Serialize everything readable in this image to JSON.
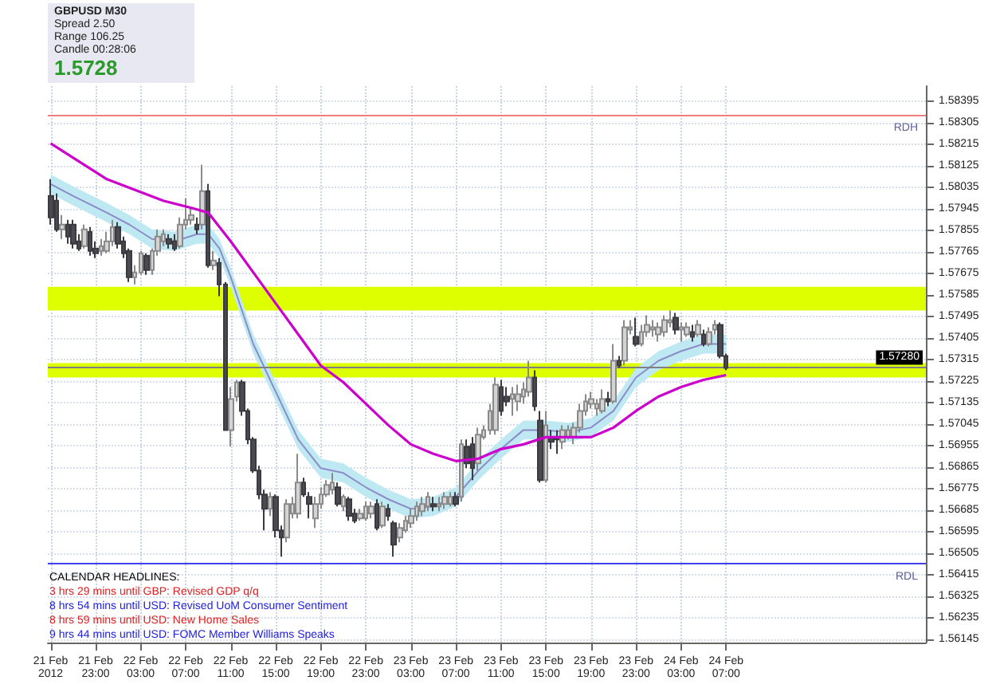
{
  "chart_data": {
    "type": "candlestick",
    "title": "GBPUSD M30",
    "annotations": [
      "Spread 2.50",
      "Range 106.25",
      "Candle 00:28:06",
      "1.5728",
      "CALENDAR HEADLINES:",
      "3 hrs 29 mins until GBP: Revised GDP q/q",
      "8 hrs 54 mins until USD: Revised UoM Consumer Sentiment",
      "8 hrs 59 mins until USD: New Home Sales",
      "9 hrs 44 mins until USD: FOMC Member Williams Speaks"
    ],
    "x": [
      "2012-02-21T19:00",
      "2012-02-21T19:30",
      "2012-02-21T20:00",
      "2012-02-21T20:30",
      "2012-02-21T21:00",
      "2012-02-21T21:30",
      "2012-02-21T22:00",
      "2012-02-21T22:30",
      "2012-02-21T23:00",
      "2012-02-21T23:30",
      "2012-02-22T00:00",
      "2012-02-22T00:30",
      "2012-02-22T01:00",
      "2012-02-22T01:30",
      "2012-02-22T02:00",
      "2012-02-22T02:30",
      "2012-02-22T03:00",
      "2012-02-22T03:30",
      "2012-02-22T04:00",
      "2012-02-22T04:30",
      "2012-02-22T05:00",
      "2012-02-22T05:30",
      "2012-02-22T06:00",
      "2012-02-22T06:30",
      "2012-02-22T07:00",
      "2012-02-22T07:30",
      "2012-02-22T08:00",
      "2012-02-22T08:30",
      "2012-02-22T09:00",
      "2012-02-22T09:30",
      "2012-02-22T10:00",
      "2012-02-22T10:30",
      "2012-02-22T11:00",
      "2012-02-22T11:30",
      "2012-02-22T12:00",
      "2012-02-22T12:30",
      "2012-02-22T13:00",
      "2012-02-22T13:30",
      "2012-02-22T14:00",
      "2012-02-22T14:30",
      "2012-02-22T15:00",
      "2012-02-22T15:30",
      "2012-02-22T16:00",
      "2012-02-22T16:30",
      "2012-02-22T17:00",
      "2012-02-22T17:30",
      "2012-02-22T18:00",
      "2012-02-22T18:30",
      "2012-02-22T19:00",
      "2012-02-22T19:30",
      "2012-02-22T20:00",
      "2012-02-22T20:30",
      "2012-02-22T21:00",
      "2012-02-22T21:30",
      "2012-02-22T22:00",
      "2012-02-22T22:30",
      "2012-02-22T23:00",
      "2012-02-22T23:30",
      "2012-02-23T00:00",
      "2012-02-23T00:30",
      "2012-02-23T01:00",
      "2012-02-23T01:30",
      "2012-02-23T02:00",
      "2012-02-23T02:30",
      "2012-02-23T03:00",
      "2012-02-23T03:30",
      "2012-02-23T04:00",
      "2012-02-23T04:30",
      "2012-02-23T05:00",
      "2012-02-23T05:30",
      "2012-02-23T06:00",
      "2012-02-23T06:30",
      "2012-02-23T07:00",
      "2012-02-23T07:30",
      "2012-02-23T08:00",
      "2012-02-23T08:30",
      "2012-02-23T09:00",
      "2012-02-23T09:30",
      "2012-02-23T10:00",
      "2012-02-23T10:30",
      "2012-02-23T11:00",
      "2012-02-23T11:30",
      "2012-02-23T12:00",
      "2012-02-23T12:30",
      "2012-02-23T13:00",
      "2012-02-23T13:30",
      "2012-02-23T14:00",
      "2012-02-23T14:30",
      "2012-02-23T15:00",
      "2012-02-23T15:30",
      "2012-02-23T16:00",
      "2012-02-23T16:30",
      "2012-02-23T17:00",
      "2012-02-23T17:30",
      "2012-02-23T18:00",
      "2012-02-23T18:30",
      "2012-02-23T19:00",
      "2012-02-23T19:30",
      "2012-02-23T20:00",
      "2012-02-23T20:30",
      "2012-02-23T21:00",
      "2012-02-23T21:30",
      "2012-02-23T22:00",
      "2012-02-23T22:30",
      "2012-02-23T23:00",
      "2012-02-23T23:30",
      "2012-02-24T00:00",
      "2012-02-24T00:30",
      "2012-02-24T01:00",
      "2012-02-24T01:30",
      "2012-02-24T02:00",
      "2012-02-24T02:30",
      "2012-02-24T03:00",
      "2012-02-24T03:30",
      "2012-02-24T04:00",
      "2012-02-24T04:30",
      "2012-02-24T05:00",
      "2012-02-24T05:30",
      "2012-02-24T06:00",
      "2012-02-24T06:30",
      "2012-02-24T07:00"
    ],
    "ohlc": [
      [
        1.58,
        1.5807,
        1.5788,
        1.5791
      ],
      [
        1.5798,
        1.5801,
        1.5785,
        1.5786
      ],
      [
        1.5786,
        1.5792,
        1.5782,
        1.5788
      ],
      [
        1.5788,
        1.579,
        1.578,
        1.5783
      ],
      [
        1.5788,
        1.579,
        1.5778,
        1.578
      ],
      [
        1.5781,
        1.5784,
        1.5777,
        1.5778
      ],
      [
        1.5779,
        1.5788,
        1.5778,
        1.5786
      ],
      [
        1.5785,
        1.5787,
        1.5775,
        1.5777
      ],
      [
        1.5778,
        1.5781,
        1.5774,
        1.5776
      ],
      [
        1.5777,
        1.5782,
        1.5775,
        1.5779
      ],
      [
        1.5777,
        1.5785,
        1.5776,
        1.5781
      ],
      [
        1.5781,
        1.579,
        1.5779,
        1.5787
      ],
      [
        1.5787,
        1.5789,
        1.5778,
        1.578
      ],
      [
        1.5781,
        1.5783,
        1.5774,
        1.5776
      ],
      [
        1.5777,
        1.5778,
        1.5764,
        1.5766
      ],
      [
        1.5766,
        1.5771,
        1.5763,
        1.5768
      ],
      [
        1.5768,
        1.5777,
        1.5767,
        1.5776
      ],
      [
        1.5775,
        1.5776,
        1.5767,
        1.5769
      ],
      [
        1.5769,
        1.5778,
        1.5767,
        1.5777
      ],
      [
        1.5777,
        1.5786,
        1.5775,
        1.5783
      ],
      [
        1.5781,
        1.5786,
        1.5779,
        1.5784
      ],
      [
        1.5782,
        1.5784,
        1.5778,
        1.578
      ],
      [
        1.5781,
        1.5784,
        1.5777,
        1.5778
      ],
      [
        1.5779,
        1.5791,
        1.5778,
        1.5788
      ],
      [
        1.5788,
        1.5799,
        1.5786,
        1.579
      ],
      [
        1.579,
        1.5795,
        1.5788,
        1.5792
      ],
      [
        1.5788,
        1.5791,
        1.5784,
        1.5786
      ],
      [
        1.5788,
        1.5813,
        1.5786,
        1.5802
      ],
      [
        1.5802,
        1.5805,
        1.577,
        1.5771
      ],
      [
        1.5771,
        1.5777,
        1.5769,
        1.5773
      ],
      [
        1.5772,
        1.5774,
        1.5758,
        1.5763
      ],
      [
        1.5763,
        1.5764,
        1.5702,
        1.5702
      ],
      [
        1.5702,
        1.572,
        1.5695,
        1.5715
      ],
      [
        1.5716,
        1.5723,
        1.5714,
        1.5722
      ],
      [
        1.5722,
        1.5723,
        1.5708,
        1.571
      ],
      [
        1.571,
        1.5711,
        1.5696,
        1.5698
      ],
      [
        1.5698,
        1.5699,
        1.5684,
        1.5685
      ],
      [
        1.5685,
        1.5687,
        1.5673,
        1.5675
      ],
      [
        1.5675,
        1.5677,
        1.566,
        1.5669
      ],
      [
        1.5669,
        1.5676,
        1.5666,
        1.5674
      ],
      [
        1.5674,
        1.5675,
        1.5657,
        1.566
      ],
      [
        1.566,
        1.5662,
        1.5649,
        1.5657
      ],
      [
        1.5657,
        1.5673,
        1.5655,
        1.5671
      ],
      [
        1.5667,
        1.5674,
        1.5665,
        1.5671
      ],
      [
        1.5667,
        1.5692,
        1.5665,
        1.568
      ],
      [
        1.568,
        1.5682,
        1.5674,
        1.5675
      ],
      [
        1.5674,
        1.5676,
        1.5665,
        1.5671
      ],
      [
        1.5665,
        1.5674,
        1.5661,
        1.5671
      ],
      [
        1.5671,
        1.5678,
        1.5669,
        1.5675
      ],
      [
        1.5675,
        1.5681,
        1.5674,
        1.5679
      ],
      [
        1.5677,
        1.5684,
        1.5675,
        1.568
      ],
      [
        1.5678,
        1.568,
        1.567,
        1.5671
      ],
      [
        1.567,
        1.5675,
        1.5668,
        1.5674
      ],
      [
        1.5673,
        1.5674,
        1.5664,
        1.5666
      ],
      [
        1.5667,
        1.5669,
        1.5663,
        1.5664
      ],
      [
        1.5665,
        1.5669,
        1.5664,
        1.5667
      ],
      [
        1.5665,
        1.5672,
        1.5664,
        1.567
      ],
      [
        1.5667,
        1.5672,
        1.5665,
        1.567
      ],
      [
        1.5671,
        1.5673,
        1.566,
        1.5661
      ],
      [
        1.5662,
        1.5672,
        1.5661,
        1.567
      ],
      [
        1.5669,
        1.5671,
        1.5664,
        1.5666
      ],
      [
        1.5663,
        1.5664,
        1.5649,
        1.5654
      ],
      [
        1.5657,
        1.5663,
        1.5655,
        1.5661
      ],
      [
        1.566,
        1.5666,
        1.5659,
        1.5664
      ],
      [
        1.5663,
        1.5669,
        1.5661,
        1.5666
      ],
      [
        1.5666,
        1.5672,
        1.5664,
        1.567
      ],
      [
        1.5668,
        1.5674,
        1.5666,
        1.5671
      ],
      [
        1.567,
        1.5676,
        1.5668,
        1.5674
      ],
      [
        1.5671,
        1.5674,
        1.5668,
        1.567
      ],
      [
        1.567,
        1.5674,
        1.5668,
        1.5671
      ],
      [
        1.5671,
        1.5676,
        1.5669,
        1.5674
      ],
      [
        1.5671,
        1.5676,
        1.567,
        1.5674
      ],
      [
        1.5674,
        1.5676,
        1.567,
        1.5671
      ],
      [
        1.5674,
        1.5698,
        1.5672,
        1.5696
      ],
      [
        1.5695,
        1.5698,
        1.5686,
        1.5688
      ],
      [
        1.5696,
        1.5699,
        1.5681,
        1.5686
      ],
      [
        1.5688,
        1.5703,
        1.5685,
        1.57
      ],
      [
        1.5699,
        1.5704,
        1.5698,
        1.5702
      ],
      [
        1.5702,
        1.5713,
        1.57,
        1.571
      ],
      [
        1.5702,
        1.5724,
        1.57,
        1.5721
      ],
      [
        1.572,
        1.5723,
        1.5708,
        1.571
      ],
      [
        1.5716,
        1.572,
        1.5712,
        1.5714
      ],
      [
        1.5715,
        1.572,
        1.5708,
        1.5717
      ],
      [
        1.5714,
        1.5721,
        1.571,
        1.5717
      ],
      [
        1.5716,
        1.5722,
        1.5713,
        1.5719
      ],
      [
        1.5718,
        1.5731,
        1.5716,
        1.5724
      ],
      [
        1.5724,
        1.5727,
        1.571,
        1.5712
      ],
      [
        1.5706,
        1.571,
        1.568,
        1.5681
      ],
      [
        1.5681,
        1.571,
        1.568,
        1.5704
      ],
      [
        1.5699,
        1.5702,
        1.5694,
        1.5697
      ],
      [
        1.5699,
        1.5702,
        1.5692,
        1.5698
      ],
      [
        1.5697,
        1.5704,
        1.5694,
        1.5702
      ],
      [
        1.5699,
        1.5704,
        1.5698,
        1.5702
      ],
      [
        1.5699,
        1.5705,
        1.5696,
        1.5703
      ],
      [
        1.5703,
        1.5713,
        1.5701,
        1.571
      ],
      [
        1.571,
        1.5717,
        1.5708,
        1.5714
      ],
      [
        1.5713,
        1.5718,
        1.5711,
        1.5715
      ],
      [
        1.5711,
        1.5715,
        1.5708,
        1.5713
      ],
      [
        1.571,
        1.5719,
        1.5709,
        1.5715
      ],
      [
        1.5715,
        1.5718,
        1.5712,
        1.5714
      ],
      [
        1.5714,
        1.5738,
        1.5713,
        1.5731
      ],
      [
        1.5731,
        1.5733,
        1.5728,
        1.5729
      ],
      [
        1.5731,
        1.5748,
        1.5729,
        1.5745
      ],
      [
        1.5744,
        1.5748,
        1.5742,
        1.5745
      ],
      [
        1.5741,
        1.5749,
        1.5737,
        1.5738
      ],
      [
        1.5738,
        1.5746,
        1.5737,
        1.5743
      ],
      [
        1.5743,
        1.575,
        1.5741,
        1.5746
      ],
      [
        1.5744,
        1.5748,
        1.5741,
        1.5745
      ],
      [
        1.5742,
        1.5747,
        1.5739,
        1.5745
      ],
      [
        1.5743,
        1.575,
        1.5741,
        1.5748
      ],
      [
        1.5747,
        1.5752,
        1.5745,
        1.5748
      ],
      [
        1.5749,
        1.5751,
        1.5742,
        1.5744
      ],
      [
        1.5744,
        1.5747,
        1.5739,
        1.5745
      ],
      [
        1.5742,
        1.5747,
        1.5741,
        1.5745
      ],
      [
        1.5743,
        1.5746,
        1.5739,
        1.5741
      ],
      [
        1.5742,
        1.5748,
        1.5741,
        1.5746
      ],
      [
        1.5742,
        1.5744,
        1.5737,
        1.5738
      ],
      [
        1.5738,
        1.5745,
        1.5737,
        1.5743
      ],
      [
        1.5744,
        1.5748,
        1.5742,
        1.5746
      ],
      [
        1.5746,
        1.5747,
        1.5732,
        1.5733
      ],
      [
        1.5733,
        1.5734,
        1.5727,
        1.5728
      ]
    ],
    "series": [
      {
        "type": "line",
        "color": "#cc00cc",
        "x": [
          "2012-02-21T19:00",
          "2012-02-22T00:00",
          "2012-02-22T05:00",
          "2012-02-22T07:30",
          "2012-02-22T09:00",
          "2012-02-22T11:00",
          "2012-02-22T13:00",
          "2012-02-22T15:00",
          "2012-02-22T17:00",
          "2012-02-22T19:00",
          "2012-02-22T21:00",
          "2012-02-22T23:00",
          "2012-02-23T01:00",
          "2012-02-23T03:00",
          "2012-02-23T05:00",
          "2012-02-23T07:00",
          "2012-02-23T09:00",
          "2012-02-23T11:00",
          "2012-02-23T13:00",
          "2012-02-23T15:00",
          "2012-02-23T17:00",
          "2012-02-23T19:00",
          "2012-02-23T21:00",
          "2012-02-23T23:00",
          "2012-02-24T01:00",
          "2012-02-24T03:00",
          "2012-02-24T05:00",
          "2012-02-24T07:00"
        ],
        "values": [
          1.5822,
          1.5807,
          1.5798,
          1.5795,
          1.5793,
          1.5781,
          1.5768,
          1.5755,
          1.5742,
          1.5729,
          1.5722,
          1.5713,
          1.5704,
          1.5696,
          1.5692,
          1.5689,
          1.569,
          1.5694,
          1.5696,
          1.5699,
          1.5699,
          1.5699,
          1.5703,
          1.571,
          1.5716,
          1.572,
          1.5723,
          1.5725
        ]
      },
      {
        "type": "line",
        "color": "#8c8cc8",
        "x": [
          "2012-02-21T19:00",
          "2012-02-21T21:00",
          "2012-02-22T00:00",
          "2012-02-22T02:00",
          "2012-02-22T04:00",
          "2012-02-22T06:00",
          "2012-02-22T08:00",
          "2012-02-22T09:00",
          "2012-02-22T10:00",
          "2012-02-22T11:00",
          "2012-02-22T13:00",
          "2012-02-22T15:00",
          "2012-02-22T17:00",
          "2012-02-22T19:00",
          "2012-02-22T21:00",
          "2012-02-22T23:00",
          "2012-02-23T01:00",
          "2012-02-23T03:00",
          "2012-02-23T05:00",
          "2012-02-23T07:00",
          "2012-02-23T09:00",
          "2012-02-23T11:00",
          "2012-02-23T13:00",
          "2012-02-23T15:00",
          "2012-02-23T17:00",
          "2012-02-23T19:00",
          "2012-02-23T21:00",
          "2012-02-23T23:00",
          "2012-02-24T01:00",
          "2012-02-24T03:00",
          "2012-02-24T05:00",
          "2012-02-24T07:00"
        ],
        "values": [
          1.5805,
          1.58,
          1.5793,
          1.5788,
          1.5782,
          1.5781,
          1.5784,
          1.5784,
          1.5778,
          1.5766,
          1.5738,
          1.5718,
          1.5698,
          1.5686,
          1.5684,
          1.5678,
          1.5673,
          1.5669,
          1.567,
          1.5674,
          1.5685,
          1.5694,
          1.5702,
          1.5702,
          1.5701,
          1.5703,
          1.571,
          1.5724,
          1.5731,
          1.5735,
          1.5738,
          1.5738
        ],
        "lower": [
          1.5801,
          1.5796,
          1.5789,
          1.5784,
          1.5778,
          1.5777,
          1.578,
          1.578,
          1.5774,
          1.5762,
          1.5734,
          1.5714,
          1.5694,
          1.5682,
          1.568,
          1.5674,
          1.5669,
          1.5665,
          1.5666,
          1.567,
          1.5681,
          1.569,
          1.5698,
          1.5698,
          1.5697,
          1.5699,
          1.5706,
          1.572,
          1.5727,
          1.5731,
          1.5734,
          1.5734
        ],
        "upper": [
          1.5809,
          1.5804,
          1.5797,
          1.5792,
          1.5786,
          1.5785,
          1.5788,
          1.5788,
          1.5782,
          1.577,
          1.5742,
          1.5722,
          1.5702,
          1.569,
          1.5688,
          1.5682,
          1.5677,
          1.5673,
          1.5674,
          1.5678,
          1.5689,
          1.5698,
          1.5706,
          1.5706,
          1.5705,
          1.5707,
          1.5714,
          1.5728,
          1.5735,
          1.5739,
          1.5742,
          1.5742
        ]
      }
    ],
    "ref_lines": [
      {
        "axis": "y",
        "value": 1.5834,
        "label": "RDH",
        "color": "#f08080"
      },
      {
        "axis": "y",
        "value": 1.5646,
        "label": "RDL",
        "color": "#4040f0"
      },
      {
        "axis": "y",
        "value": 1.5728,
        "label": "1.57280",
        "color": "#808080"
      }
    ],
    "bands": [
      {
        "axis": "y",
        "from": 1.5752,
        "to": 1.5762,
        "color": "#ddff00"
      },
      {
        "axis": "y",
        "from": 1.5724,
        "to": 1.573,
        "color": "#ddff00"
      }
    ],
    "xlim": [
      "2012-02-21T18:45",
      "2012-02-25T00:45"
    ],
    "xticks": [
      {
        "value": "2012-02-21T19:00",
        "label": "21 Feb 2012"
      },
      {
        "value": "2012-02-21T23:00",
        "label": "21 Feb 23:00"
      },
      {
        "value": "2012-02-22T03:00",
        "label": "22 Feb 03:00"
      },
      {
        "value": "2012-02-22T07:00",
        "label": "22 Feb 07:00"
      },
      {
        "value": "2012-02-22T11:00",
        "label": "22 Feb 11:00"
      },
      {
        "value": "2012-02-22T15:00",
        "label": "22 Feb 15:00"
      },
      {
        "value": "2012-02-22T19:00",
        "label": "22 Feb 19:00"
      },
      {
        "value": "2012-02-22T23:00",
        "label": "22 Feb 23:00"
      },
      {
        "value": "2012-02-23T03:00",
        "label": "23 Feb 03:00"
      },
      {
        "value": "2012-02-23T07:00",
        "label": "23 Feb 07:00"
      },
      {
        "value": "2012-02-23T11:00",
        "label": "23 Feb 11:00"
      },
      {
        "value": "2012-02-23T15:00",
        "label": "23 Feb 15:00"
      },
      {
        "value": "2012-02-23T19:00",
        "label": "23 Feb 19:00"
      },
      {
        "value": "2012-02-23T23:00",
        "label": "23 Feb 23:00"
      },
      {
        "value": "2012-02-24T03:00",
        "label": "24 Feb 03:00"
      },
      {
        "value": "2012-02-24T07:00",
        "label": "24 Feb 07:00"
      }
    ],
    "ylim": [
      1.5613,
      1.5846
    ],
    "yticks": [
      1.56145,
      1.56235,
      1.56325,
      1.56415,
      1.56505,
      1.56595,
      1.56685,
      1.56775,
      1.56865,
      1.56955,
      1.57045,
      1.57135,
      1.57225,
      1.57315,
      1.57405,
      1.57495,
      1.57585,
      1.57675,
      1.57765,
      1.57855,
      1.57945,
      1.58035,
      1.58125,
      1.58215,
      1.58305,
      1.58395
    ],
    "grid": true,
    "marker": "none"
  }
}
